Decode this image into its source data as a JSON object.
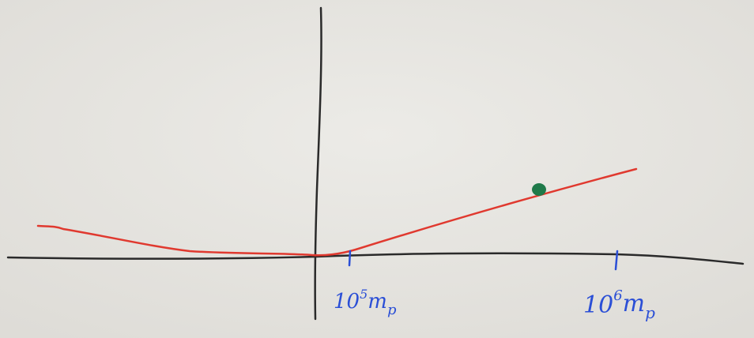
{
  "tick_labels": [
    {
      "base": "10",
      "exponent": "5",
      "unit": "m",
      "subscript": "p"
    },
    {
      "base": "10",
      "exponent": "6",
      "unit": "m",
      "subscript": "p"
    }
  ]
}
